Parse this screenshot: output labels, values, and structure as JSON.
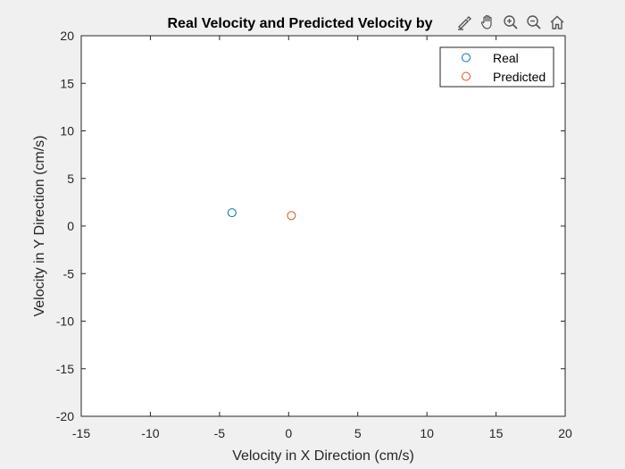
{
  "toolbar": {
    "icons": [
      "brush-icon",
      "pan-hand-icon",
      "zoom-in-icon",
      "zoom-out-icon",
      "home-icon"
    ]
  },
  "chart_data": {
    "type": "scatter",
    "title": "Real Velocity and Predicted Velocity by",
    "xlabel": "Velocity in X Direction (cm/s)",
    "ylabel": "Velocity in Y Direction (cm/s)",
    "xlim": [
      -15,
      20
    ],
    "ylim": [
      -20,
      20
    ],
    "xticks": [
      -15,
      -10,
      -5,
      0,
      5,
      10,
      15,
      20
    ],
    "yticks": [
      -20,
      -15,
      -10,
      -5,
      0,
      5,
      10,
      15,
      20
    ],
    "grid": false,
    "legend_position": "top-right",
    "marker": "circle-open",
    "series": [
      {
        "name": "Real",
        "color": "#0072BD",
        "points": [
          {
            "x": -4.1,
            "y": 1.4
          }
        ]
      },
      {
        "name": "Predicted",
        "color": "#D95319",
        "points": [
          {
            "x": 0.2,
            "y": 1.1
          }
        ]
      }
    ]
  }
}
